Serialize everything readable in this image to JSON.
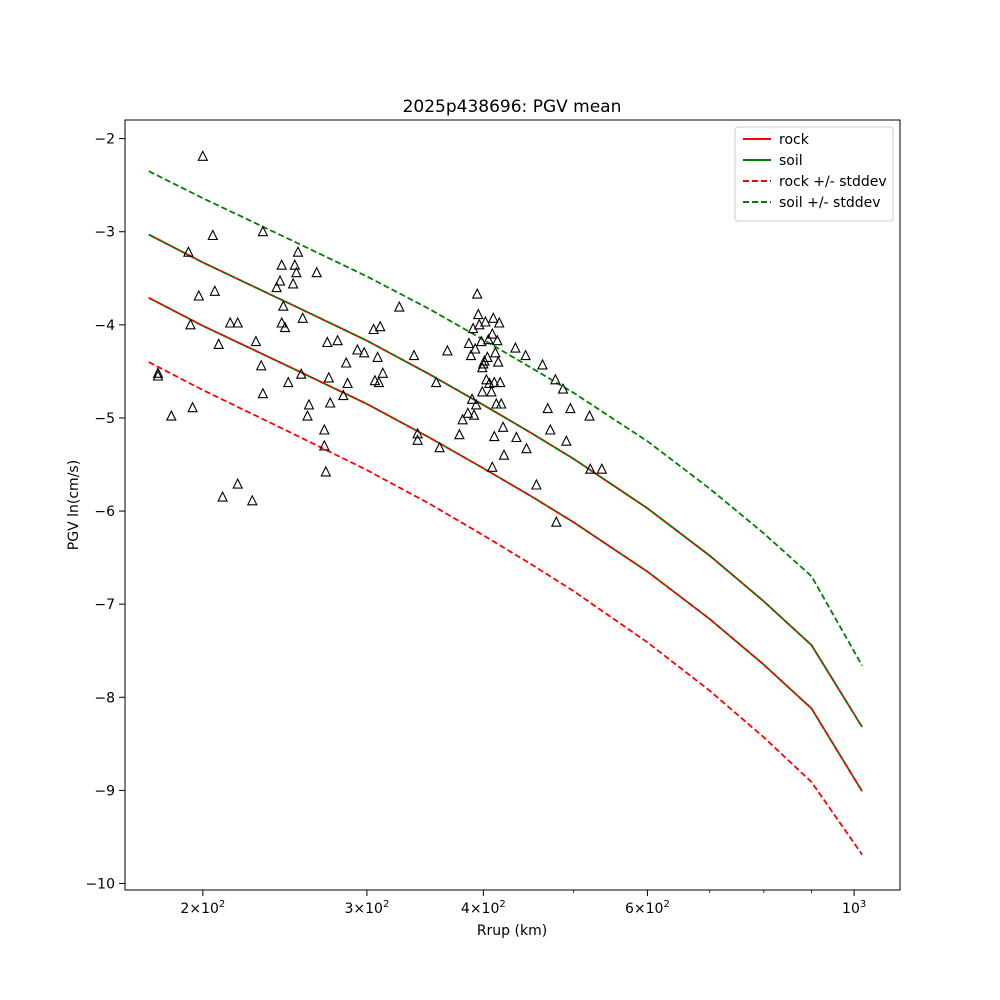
{
  "chart_data": {
    "type": "scatter",
    "title": "2025p438696: PGV mean",
    "xlabel": "Rrup (km)",
    "ylabel": "PGV ln(cm/s)",
    "xscale": "log",
    "xlim": [
      165,
      1120
    ],
    "ylim": [
      -10.07,
      -1.8
    ],
    "x_major_ticks": [
      200,
      300,
      400,
      600,
      1000
    ],
    "x_major_tick_labels": [
      {
        "mantissa": "2",
        "times": "×",
        "base": "10",
        "exp": "2"
      },
      {
        "mantissa": "3",
        "times": "×",
        "base": "10",
        "exp": "2"
      },
      {
        "mantissa": "4",
        "times": "×",
        "base": "10",
        "exp": "2"
      },
      {
        "mantissa": "6",
        "times": "×",
        "base": "10",
        "exp": "2"
      },
      {
        "mantissa": "",
        "times": "",
        "base": "10",
        "exp": "3"
      }
    ],
    "x_minor_ticks": [
      500,
      700,
      800,
      900
    ],
    "y_ticks": [
      -10,
      -9,
      -8,
      -7,
      -6,
      -5,
      -4,
      -3,
      -2
    ],
    "y_tick_labels": [
      "−10",
      "−9",
      "−8",
      "−7",
      "−6",
      "−5",
      "−4",
      "−3",
      "−2"
    ],
    "grid": false,
    "legend_position": "top-right",
    "series": [
      {
        "name": "rock",
        "style": "solid",
        "color": "#ff0000",
        "x": [
          175,
          200,
          250,
          300,
          350,
          400,
          450,
          500,
          600,
          700,
          800,
          900,
          1020
        ],
        "y": [
          -3.03,
          -3.33,
          -3.79,
          -4.17,
          -4.53,
          -4.86,
          -5.16,
          -5.44,
          -5.97,
          -6.48,
          -6.97,
          -7.44,
          -8.32
        ]
      },
      {
        "name": "soil",
        "style": "solid",
        "color": "#008000",
        "x": [
          175,
          200,
          250,
          300,
          350,
          400,
          450,
          500,
          600,
          700,
          800,
          900,
          1020
        ],
        "y": [
          -3.71,
          -4.01,
          -4.47,
          -4.85,
          -5.21,
          -5.54,
          -5.84,
          -6.12,
          -6.65,
          -7.16,
          -7.65,
          -8.12,
          -9.01
        ]
      },
      {
        "name": "rock +/- stddev",
        "style": "dashed",
        "color": "#ff0000",
        "x": [
          175,
          200,
          250,
          300,
          350,
          400,
          450,
          500,
          600,
          700,
          800,
          900,
          1020
        ],
        "y": [
          -3.71,
          -4.01,
          -4.47,
          -4.85,
          -5.21,
          -5.54,
          -5.84,
          -6.12,
          -6.65,
          -7.16,
          -7.65,
          -8.12,
          -9.01
        ]
      },
      {
        "name": "",
        "style": "dashed",
        "color": "#ff0000",
        "x": [
          175,
          200,
          250,
          300,
          350,
          400,
          450,
          500,
          600,
          700,
          800,
          900,
          1020
        ],
        "y": [
          -4.4,
          -4.7,
          -5.17,
          -5.56,
          -5.92,
          -6.26,
          -6.57,
          -6.86,
          -7.41,
          -7.93,
          -8.43,
          -8.91,
          -9.69
        ]
      },
      {
        "name": "soil +/- stddev",
        "style": "dashed",
        "color": "#008000",
        "x": [
          175,
          200,
          250,
          300,
          350,
          400,
          450,
          500,
          600,
          700,
          800,
          900,
          1020
        ],
        "y": [
          -2.35,
          -2.64,
          -3.1,
          -3.48,
          -3.83,
          -4.16,
          -4.46,
          -4.73,
          -5.25,
          -5.76,
          -6.24,
          -6.7,
          -7.66
        ]
      },
      {
        "name": "",
        "style": "dashed",
        "color": "#008000",
        "x": [
          175,
          200,
          250,
          300,
          350,
          400,
          450,
          500,
          600,
          700,
          800,
          900,
          1020
        ],
        "y": [
          -3.03,
          -3.33,
          -3.79,
          -4.17,
          -4.53,
          -4.86,
          -5.16,
          -5.44,
          -5.97,
          -6.48,
          -6.97,
          -7.44,
          -8.32
        ]
      }
    ],
    "observations": {
      "marker": "triangle-open",
      "color": "#000000",
      "points": [
        [
          179,
          -4.52
        ],
        [
          179,
          -4.55
        ],
        [
          185,
          -4.98
        ],
        [
          193,
          -3.22
        ],
        [
          194,
          -4.0
        ],
        [
          195,
          -4.89
        ],
        [
          198,
          -3.69
        ],
        [
          200,
          -2.19
        ],
        [
          205,
          -3.04
        ],
        [
          206,
          -3.64
        ],
        [
          208,
          -4.21
        ],
        [
          210,
          -5.85
        ],
        [
          214,
          -3.98
        ],
        [
          218,
          -5.71
        ],
        [
          218,
          -3.98
        ],
        [
          226,
          -5.89
        ],
        [
          228,
          -4.18
        ],
        [
          231,
          -4.44
        ],
        [
          232,
          -4.74
        ],
        [
          232,
          -3.0
        ],
        [
          240,
          -3.6
        ],
        [
          242,
          -3.53
        ],
        [
          243,
          -3.36
        ],
        [
          243,
          -3.98
        ],
        [
          244,
          -3.8
        ],
        [
          245,
          -4.03
        ],
        [
          247,
          -4.62
        ],
        [
          250,
          -3.56
        ],
        [
          251,
          -3.36
        ],
        [
          252,
          -3.44
        ],
        [
          253,
          -3.22
        ],
        [
          255,
          -4.53
        ],
        [
          256,
          -3.93
        ],
        [
          259,
          -4.98
        ],
        [
          260,
          -4.86
        ],
        [
          265,
          -3.44
        ],
        [
          270,
          -5.13
        ],
        [
          270,
          -5.3
        ],
        [
          271,
          -5.58
        ],
        [
          272,
          -4.19
        ],
        [
          273,
          -4.57
        ],
        [
          274,
          -4.84
        ],
        [
          279,
          -4.17
        ],
        [
          283,
          -4.76
        ],
        [
          285,
          -4.41
        ],
        [
          286,
          -4.63
        ],
        [
          293,
          -4.27
        ],
        [
          298,
          -4.3
        ],
        [
          305,
          -4.05
        ],
        [
          306,
          -4.6
        ],
        [
          308,
          -4.35
        ],
        [
          309,
          -4.62
        ],
        [
          310,
          -4.02
        ],
        [
          312,
          -4.52
        ],
        [
          325,
          -3.81
        ],
        [
          337,
          -4.33
        ],
        [
          340,
          -5.17
        ],
        [
          340,
          -5.24
        ],
        [
          356,
          -4.62
        ],
        [
          359,
          -5.32
        ],
        [
          366,
          -4.28
        ],
        [
          377,
          -5.18
        ],
        [
          380,
          -5.02
        ],
        [
          385,
          -4.95
        ],
        [
          386,
          -4.2
        ],
        [
          388,
          -4.33
        ],
        [
          389,
          -4.8
        ],
        [
          390,
          -4.04
        ],
        [
          391,
          -4.97
        ],
        [
          392,
          -4.26
        ],
        [
          393,
          -4.86
        ],
        [
          394,
          -3.67
        ],
        [
          395,
          -3.89
        ],
        [
          396,
          -4.0
        ],
        [
          398,
          -4.18
        ],
        [
          399,
          -4.46
        ],
        [
          399,
          -4.72
        ],
        [
          400,
          -4.42
        ],
        [
          401,
          -4.39
        ],
        [
          402,
          -3.97
        ],
        [
          403,
          -4.59
        ],
        [
          404,
          -4.35
        ],
        [
          405,
          -4.16
        ],
        [
          406,
          -4.63
        ],
        [
          408,
          -4.72
        ],
        [
          409,
          -4.1
        ],
        [
          410,
          -3.93
        ],
        [
          411,
          -4.62
        ],
        [
          412,
          -4.3
        ],
        [
          413,
          -4.85
        ],
        [
          414,
          -4.17
        ],
        [
          415,
          -4.4
        ],
        [
          416,
          -3.98
        ],
        [
          417,
          -4.62
        ],
        [
          418,
          -4.85
        ],
        [
          420,
          -5.1
        ],
        [
          421,
          -5.4
        ],
        [
          409,
          -5.53
        ],
        [
          411,
          -5.2
        ],
        [
          433,
          -4.25
        ],
        [
          434,
          -5.21
        ],
        [
          444,
          -4.33
        ],
        [
          445,
          -5.33
        ],
        [
          456,
          -5.72
        ],
        [
          463,
          -4.43
        ],
        [
          469,
          -4.9
        ],
        [
          472,
          -5.13
        ],
        [
          478,
          -4.59
        ],
        [
          479,
          -6.12
        ],
        [
          487,
          -4.69
        ],
        [
          491,
          -5.25
        ],
        [
          496,
          -4.9
        ],
        [
          520,
          -4.98
        ],
        [
          521,
          -5.55
        ],
        [
          536,
          -5.55
        ]
      ]
    }
  }
}
